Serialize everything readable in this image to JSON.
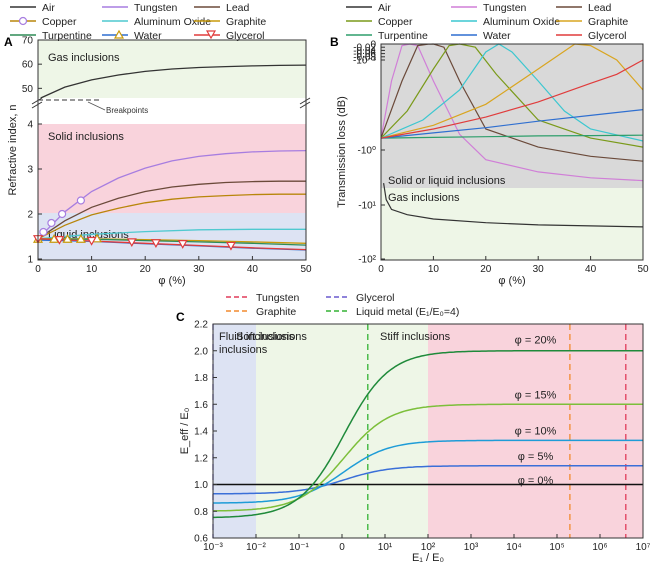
{
  "chart_data": [
    {
      "panel": "A",
      "type": "line",
      "xlabel": "φ (%)",
      "ylabel": "Refractive index, n",
      "xlim": [
        0,
        50
      ],
      "xticks": [
        "0",
        "10",
        "20",
        "30",
        "40",
        "50"
      ],
      "yticks_lower": [
        "1",
        "2",
        "3",
        "4"
      ],
      "yticks_upper": [
        "50",
        "60",
        "70"
      ],
      "legend": [
        "Air",
        "Tungsten",
        "Lead",
        "Copper",
        "Aluminum Oxide",
        "Graphite",
        "Turpentine",
        "Water",
        "Glycerol"
      ],
      "regions": [
        "Gas inclusions",
        "Solid inclusions",
        "Liquid inclusions"
      ],
      "annotation": "Breakpoints",
      "series": [
        {
          "name": "Air",
          "color": "#333333",
          "x": [
            0.5,
            5,
            10,
            15,
            20,
            25,
            30,
            35,
            40,
            45,
            50
          ],
          "y": [
            46,
            50.5,
            53.5,
            55.5,
            57,
            58,
            58.6,
            59,
            59.3,
            59.5,
            59.6
          ]
        },
        {
          "name": "Tungsten",
          "color": "#a77de0",
          "x": [
            0,
            5,
            10,
            15,
            20,
            25,
            30,
            35,
            40,
            45,
            50
          ],
          "y": [
            1.45,
            2.05,
            2.5,
            2.8,
            3.02,
            3.18,
            3.28,
            3.34,
            3.38,
            3.4,
            3.41
          ]
        },
        {
          "name": "Lead",
          "color": "#6b4a3a",
          "x": [
            0,
            5,
            10,
            15,
            20,
            25,
            30,
            35,
            40,
            45,
            50
          ],
          "y": [
            1.45,
            1.85,
            2.15,
            2.35,
            2.5,
            2.6,
            2.66,
            2.7,
            2.72,
            2.73,
            2.73
          ]
        },
        {
          "name": "Copper",
          "color": "#b8860b",
          "x": [
            0,
            5,
            10,
            15,
            20,
            25,
            30,
            35,
            40,
            45,
            50
          ],
          "y": [
            1.45,
            1.75,
            1.98,
            2.13,
            2.25,
            2.33,
            2.38,
            2.41,
            2.43,
            2.44,
            2.44
          ]
        },
        {
          "name": "Aluminum Oxide",
          "color": "#4fc9cf",
          "x": [
            0,
            10,
            20,
            30,
            40,
            50
          ],
          "y": [
            1.45,
            1.55,
            1.61,
            1.65,
            1.66,
            1.66
          ]
        },
        {
          "name": "Graphite",
          "color": "#c89a0a",
          "x": [
            0,
            10,
            20,
            30,
            40,
            50
          ],
          "y": [
            1.45,
            1.45,
            1.43,
            1.41,
            1.38,
            1.35
          ]
        },
        {
          "name": "Turpentine",
          "color": "#2e8b57",
          "x": [
            0,
            10,
            20,
            30,
            40,
            50
          ],
          "y": [
            1.44,
            1.44,
            1.41,
            1.38,
            1.35,
            1.31
          ]
        },
        {
          "name": "Water",
          "color": "#2f6fd0",
          "x": [
            0,
            10,
            20,
            30,
            40,
            50
          ],
          "y": [
            1.42,
            1.39,
            1.34,
            1.29,
            1.24,
            1.2
          ]
        },
        {
          "name": "Glycerol",
          "color": "#e03c3c",
          "x": [
            0,
            10,
            20,
            30,
            40,
            50
          ],
          "y": [
            1.45,
            1.4,
            1.35,
            1.3,
            1.25,
            1.21
          ]
        }
      ],
      "markers": [
        {
          "series": "Tungsten",
          "shape": "circle",
          "x": [
            1,
            2.5,
            4.5,
            8
          ],
          "y": [
            1.6,
            1.8,
            2.0,
            2.3
          ]
        },
        {
          "series": "Graphite",
          "shape": "triangle-up",
          "x": [
            0,
            3,
            5.5,
            8,
            11
          ],
          "y": [
            1.45,
            1.45,
            1.45,
            1.45,
            1.46
          ]
        },
        {
          "series": "Glycerol",
          "shape": "triangle-down",
          "x": [
            0,
            4,
            10,
            17.5,
            22,
            27,
            36
          ],
          "y": [
            1.44,
            1.42,
            1.4,
            1.37,
            1.35,
            1.33,
            1.29
          ]
        }
      ]
    },
    {
      "panel": "B",
      "type": "line",
      "xlabel": "φ (%)",
      "ylabel": "Transmission loss (dB)",
      "xlim": [
        0,
        50
      ],
      "xticks": [
        "0",
        "10",
        "20",
        "30",
        "40",
        "50"
      ],
      "yticks": [
        "0",
        "-0.02",
        "-0.04",
        "-0.06",
        "-0.08",
        "-10⁻³",
        "-10⁰",
        "-10¹",
        "-10²"
      ],
      "legend": [
        "Air",
        "Tungsten",
        "Lead",
        "Copper",
        "Aluminum Oxide",
        "Graphite",
        "Turpentine",
        "Water",
        "Glycerol"
      ],
      "regions": [
        "Solid or liquid inclusions",
        "Gas inclusions"
      ],
      "series": [
        {
          "name": "Air",
          "color": "#333333",
          "x": [
            0.5,
            1,
            2,
            5,
            10,
            20,
            30,
            40,
            50
          ],
          "y": [
            -4,
            -8,
            -12,
            -15,
            -18,
            -21,
            -23,
            -24,
            -25
          ]
        },
        {
          "name": "Tungsten",
          "color": "#d07fd7",
          "x": [
            0,
            2,
            4,
            5.5,
            7,
            10,
            15,
            20,
            30,
            40,
            50
          ],
          "y": [
            -0.4,
            -0.005,
            -0.0001,
            0,
            -0.0001,
            -0.005,
            -0.3,
            -1.5,
            -2.5,
            -3.2,
            -3.6
          ]
        },
        {
          "name": "Lead",
          "color": "#6b4a3a",
          "x": [
            0,
            4,
            7,
            9,
            10,
            12,
            15,
            20,
            30,
            40,
            50
          ],
          "y": [
            -0.4,
            -0.005,
            -0.0001,
            -1e-05,
            0,
            -0.0002,
            -0.005,
            -0.2,
            -0.8,
            -1.3,
            -1.6
          ]
        },
        {
          "name": "Copper",
          "color": "#7a9a1a",
          "x": [
            0,
            5,
            10,
            13,
            15,
            18,
            22,
            30,
            40,
            50
          ],
          "y": [
            -0.4,
            -0.05,
            -0.002,
            -0.0001,
            0,
            -0.0002,
            -0.003,
            -0.1,
            -0.4,
            -0.8
          ]
        },
        {
          "name": "Aluminum Oxide",
          "color": "#3cc7d0",
          "x": [
            0,
            8,
            15,
            20,
            22.5,
            25,
            30,
            35,
            40,
            50
          ],
          "y": [
            -0.4,
            -0.1,
            -0.01,
            -0.0005,
            0,
            -0.0005,
            -0.005,
            -0.05,
            -0.2,
            -0.5
          ]
        },
        {
          "name": "Graphite",
          "color": "#d9a520",
          "x": [
            0,
            10,
            20,
            30,
            37,
            40,
            45,
            50
          ],
          "y": [
            -0.4,
            -0.15,
            -0.03,
            -0.002,
            0,
            -0.0001,
            -0.001,
            -0.01
          ]
        },
        {
          "name": "Turpentine",
          "color": "#2e9e6b",
          "x": [
            0,
            10,
            20,
            30,
            40,
            50
          ],
          "y": [
            -0.4,
            -0.38,
            -0.36,
            -0.34,
            -0.33,
            -0.32
          ]
        },
        {
          "name": "Water",
          "color": "#2f6fd0",
          "x": [
            0,
            10,
            20,
            30,
            40,
            50
          ],
          "y": [
            -0.4,
            -0.27,
            -0.18,
            -0.11,
            -0.07,
            -0.045
          ]
        },
        {
          "name": "Glycerol",
          "color": "#e03c3c",
          "x": [
            0,
            10,
            20,
            30,
            40,
            45,
            50
          ],
          "y": [
            -0.4,
            -0.2,
            -0.08,
            -0.025,
            -0.006,
            -0.003,
            -0.001
          ]
        }
      ]
    },
    {
      "panel": "C",
      "type": "line",
      "xlabel": "E₁ / E₀",
      "ylabel": "E_eff / E₀",
      "ylim": [
        0.6,
        2.2
      ],
      "xticks": [
        "10⁻³",
        "10⁻²",
        "10⁻¹",
        "0",
        "10¹",
        "10²",
        "10³",
        "10⁴",
        "10⁵",
        "10⁶",
        "10⁷"
      ],
      "yticks": [
        "0.6",
        "0.8",
        "1.0",
        "1.2",
        "1.4",
        "1.6",
        "1.8",
        "2.0",
        "2.2"
      ],
      "legend": [
        "Tungsten",
        "Graphite",
        "Glycerol",
        "Liquid metal (E₁/E₀=4)"
      ],
      "regions": [
        "Fluid inclusions",
        "Soft inclusions",
        "Stiff inclusions"
      ],
      "vlines": [
        {
          "name": "Tungsten",
          "color": "#e03c5a",
          "x_exp": 6.6
        },
        {
          "name": "Graphite",
          "color": "#f28a2e",
          "x_exp": 5.3
        },
        {
          "name": "Glycerol",
          "color": "#6a5acd",
          "x_exp": -3
        },
        {
          "name": "Liquid metal (E₁/E₀=4)",
          "color": "#33b233",
          "x_exp": 0.6
        }
      ],
      "curves": [
        {
          "label": "φ = 0%",
          "color": "#111111",
          "low": 1.0,
          "high": 1.0
        },
        {
          "label": "φ = 5%",
          "color": "#3a6fd8",
          "low": 0.93,
          "high": 1.14
        },
        {
          "label": "φ = 10%",
          "color": "#1e9cd7",
          "low": 0.86,
          "high": 1.33
        },
        {
          "label": "φ = 15%",
          "color": "#7cbf3a",
          "low": 0.8,
          "high": 1.6
        },
        {
          "label": "φ = 20%",
          "color": "#1f8a3a",
          "low": 0.75,
          "high": 2.0
        }
      ]
    }
  ]
}
